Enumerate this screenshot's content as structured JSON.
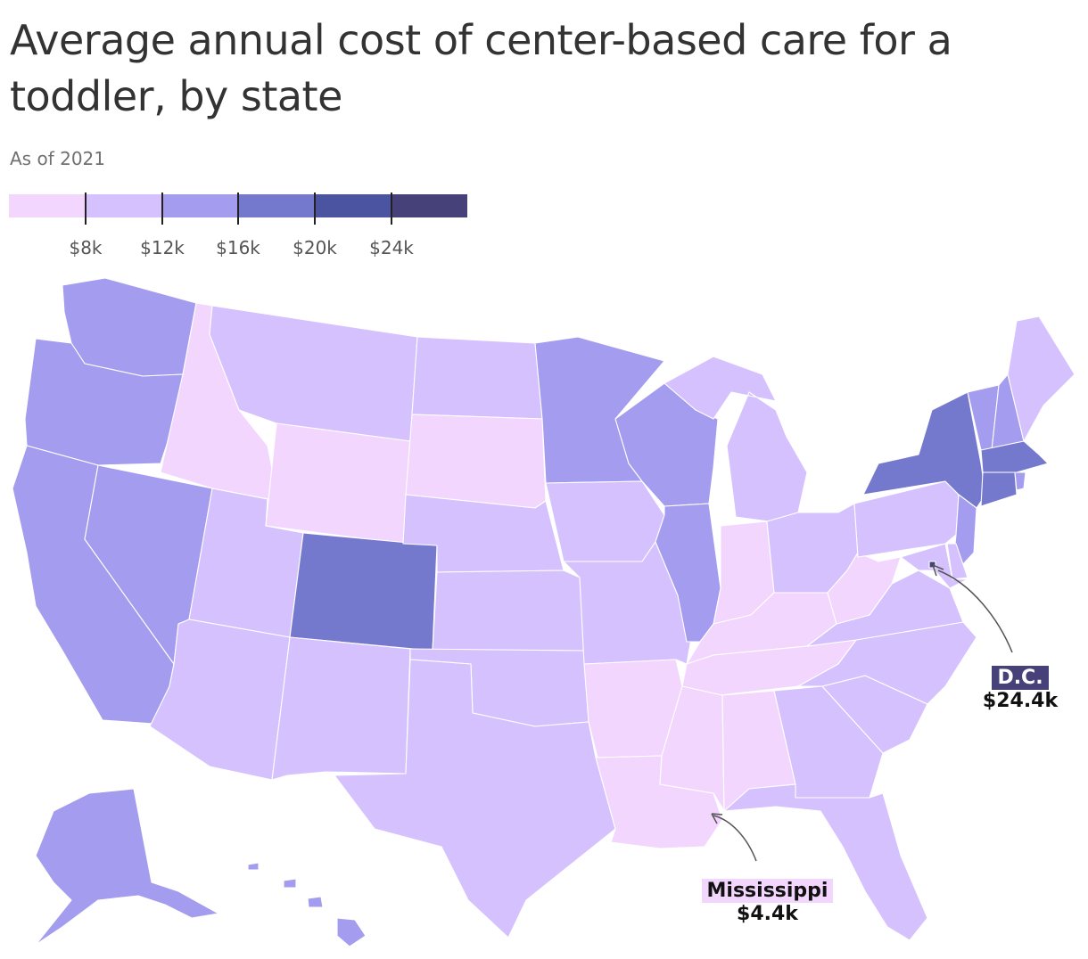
{
  "title": "Average annual cost of center-based care for a toddler, by state",
  "subtitle": "As of 2021",
  "legend": {
    "colors": [
      "#f3d6fe",
      "#d5c1fe",
      "#a39cef",
      "#7579ce",
      "#4a54a0",
      "#464178"
    ],
    "labels": [
      "$8k",
      "$12k",
      "$16k",
      "$20k",
      "$24k"
    ]
  },
  "map_data": {
    "states": [
      {
        "id": "WA",
        "bin": 2
      },
      {
        "id": "OR",
        "bin": 2
      },
      {
        "id": "CA",
        "bin": 2
      },
      {
        "id": "NV",
        "bin": 2
      },
      {
        "id": "ID",
        "bin": 0
      },
      {
        "id": "MT",
        "bin": 1
      },
      {
        "id": "WY",
        "bin": 0
      },
      {
        "id": "UT",
        "bin": 1
      },
      {
        "id": "AZ",
        "bin": 1
      },
      {
        "id": "CO",
        "bin": 3
      },
      {
        "id": "NM",
        "bin": 1
      },
      {
        "id": "ND",
        "bin": 1
      },
      {
        "id": "SD",
        "bin": 0
      },
      {
        "id": "NE",
        "bin": 1
      },
      {
        "id": "KS",
        "bin": 1
      },
      {
        "id": "OK",
        "bin": 1
      },
      {
        "id": "TX",
        "bin": 1
      },
      {
        "id": "MN",
        "bin": 2
      },
      {
        "id": "IA",
        "bin": 1
      },
      {
        "id": "MO",
        "bin": 1
      },
      {
        "id": "AR",
        "bin": 0
      },
      {
        "id": "LA",
        "bin": 0
      },
      {
        "id": "WI",
        "bin": 2
      },
      {
        "id": "IL",
        "bin": 2
      },
      {
        "id": "MI",
        "bin": 1
      },
      {
        "id": "IN",
        "bin": 0
      },
      {
        "id": "OH",
        "bin": 1
      },
      {
        "id": "KY",
        "bin": 0
      },
      {
        "id": "TN",
        "bin": 0
      },
      {
        "id": "MS",
        "bin": 0
      },
      {
        "id": "AL",
        "bin": 0
      },
      {
        "id": "GA",
        "bin": 1
      },
      {
        "id": "FL",
        "bin": 1
      },
      {
        "id": "SC",
        "bin": 1
      },
      {
        "id": "NC",
        "bin": 1
      },
      {
        "id": "VA",
        "bin": 1
      },
      {
        "id": "WV",
        "bin": 0
      },
      {
        "id": "PA",
        "bin": 1
      },
      {
        "id": "NY",
        "bin": 3
      },
      {
        "id": "VT",
        "bin": 2
      },
      {
        "id": "NH",
        "bin": 2
      },
      {
        "id": "ME",
        "bin": 1
      },
      {
        "id": "MA",
        "bin": 3
      },
      {
        "id": "CT",
        "bin": 3
      },
      {
        "id": "RI",
        "bin": 2
      },
      {
        "id": "NJ",
        "bin": 2
      },
      {
        "id": "DE",
        "bin": 1
      },
      {
        "id": "MD",
        "bin": 1
      },
      {
        "id": "DC",
        "bin": 5
      },
      {
        "id": "AK",
        "bin": 2
      },
      {
        "id": "HI",
        "bin": 2
      }
    ]
  },
  "callouts": [
    {
      "name": "D.C.",
      "value": "$24.4k"
    },
    {
      "name": "Mississippi",
      "value": "$4.4k"
    }
  ]
}
